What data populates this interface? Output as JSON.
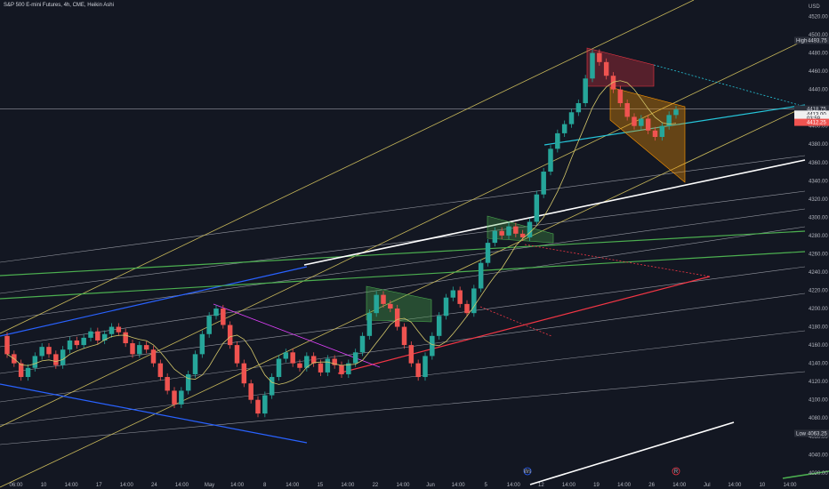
{
  "header": {
    "symbol_line": "S&P 500 E-mini Futures, 4h, CME, Heikin Ashi",
    "currency": "USD"
  },
  "chart_data": {
    "type": "candlestick",
    "price_axis": {
      "ticks": [
        4020,
        4040,
        4060,
        4080,
        4100,
        4120,
        4140,
        4160,
        4180,
        4200,
        4220,
        4240,
        4260,
        4280,
        4300,
        4320,
        4340,
        4360,
        4380,
        4400,
        4420,
        4440,
        4460,
        4480,
        4500,
        4520
      ],
      "tick_labels": [
        "4020.00",
        "4040.00",
        "4060.00",
        "4080.00",
        "4100.00",
        "4120.00",
        "4140.00",
        "4160.00",
        "4180.00",
        "4200.00",
        "4220.00",
        "4240.00",
        "4260.00",
        "4280.00",
        "4300.00",
        "4320.00",
        "4340.00",
        "4360.00",
        "4380.00",
        "4400.00",
        "4420.00",
        "4440.00",
        "4460.00",
        "4480.00",
        "4500.00",
        "4520.00"
      ],
      "range": [
        4014,
        4538
      ]
    },
    "time_axis": {
      "labels": [
        "06:00",
        "10",
        "14:00",
        "17",
        "14:00",
        "24",
        "14:00",
        "May",
        "14:00",
        "8",
        "14:00",
        "15",
        "14:00",
        "22",
        "14:00",
        "Jun",
        "14:00",
        "5",
        "14:00",
        "12",
        "14:00",
        "19",
        "14:00",
        "26",
        "14:00",
        "Jul",
        "14:00",
        "10",
        "14:00"
      ]
    },
    "markers": {
      "high_label": "High",
      "high_value": "4493.75",
      "low_label": "Low",
      "low_value": "4063.25",
      "last_price": "4418.75",
      "last_price_2": "4413.00",
      "countdown": "03:59",
      "other_price": "4412.25"
    },
    "annotations": [
      "Ws",
      "R"
    ],
    "ohlc_approx": [
      {
        "o": 4170,
        "c": 4150
      },
      {
        "o": 4150,
        "c": 4140
      },
      {
        "o": 4140,
        "c": 4125
      },
      {
        "o": 4125,
        "c": 4135
      },
      {
        "o": 4135,
        "c": 4148
      },
      {
        "o": 4148,
        "c": 4158
      },
      {
        "o": 4158,
        "c": 4150
      },
      {
        "o": 4150,
        "c": 4138
      },
      {
        "o": 4138,
        "c": 4155
      },
      {
        "o": 4155,
        "c": 4165
      },
      {
        "o": 4165,
        "c": 4160
      },
      {
        "o": 4160,
        "c": 4168
      },
      {
        "o": 4168,
        "c": 4175
      },
      {
        "o": 4175,
        "c": 4165
      },
      {
        "o": 4165,
        "c": 4172
      },
      {
        "o": 4172,
        "c": 4180
      },
      {
        "o": 4180,
        "c": 4174
      },
      {
        "o": 4174,
        "c": 4162
      },
      {
        "o": 4162,
        "c": 4150
      },
      {
        "o": 4150,
        "c": 4160
      },
      {
        "o": 4160,
        "c": 4155
      },
      {
        "o": 4155,
        "c": 4140
      },
      {
        "o": 4140,
        "c": 4125
      },
      {
        "o": 4125,
        "c": 4110
      },
      {
        "o": 4110,
        "c": 4095
      },
      {
        "o": 4095,
        "c": 4110
      },
      {
        "o": 4110,
        "c": 4128
      },
      {
        "o": 4128,
        "c": 4150
      },
      {
        "o": 4150,
        "c": 4172
      },
      {
        "o": 4172,
        "c": 4192
      },
      {
        "o": 4192,
        "c": 4200
      },
      {
        "o": 4200,
        "c": 4182
      },
      {
        "o": 4182,
        "c": 4160
      },
      {
        "o": 4160,
        "c": 4140
      },
      {
        "o": 4140,
        "c": 4118
      },
      {
        "o": 4118,
        "c": 4100
      },
      {
        "o": 4100,
        "c": 4085
      },
      {
        "o": 4085,
        "c": 4105
      },
      {
        "o": 4105,
        "c": 4125
      },
      {
        "o": 4125,
        "c": 4145
      },
      {
        "o": 4145,
        "c": 4152
      },
      {
        "o": 4152,
        "c": 4140
      },
      {
        "o": 4140,
        "c": 4135
      },
      {
        "o": 4135,
        "c": 4148
      },
      {
        "o": 4148,
        "c": 4140
      },
      {
        "o": 4140,
        "c": 4130
      },
      {
        "o": 4130,
        "c": 4145
      },
      {
        "o": 4145,
        "c": 4138
      },
      {
        "o": 4138,
        "c": 4128
      },
      {
        "o": 4128,
        "c": 4140
      },
      {
        "o": 4140,
        "c": 4152
      },
      {
        "o": 4152,
        "c": 4170
      },
      {
        "o": 4170,
        "c": 4195
      },
      {
        "o": 4195,
        "c": 4215
      },
      {
        "o": 4215,
        "c": 4205
      },
      {
        "o": 4205,
        "c": 4200
      },
      {
        "o": 4200,
        "c": 4180
      },
      {
        "o": 4180,
        "c": 4160
      },
      {
        "o": 4160,
        "c": 4140
      },
      {
        "o": 4140,
        "c": 4125
      },
      {
        "o": 4125,
        "c": 4148
      },
      {
        "o": 4148,
        "c": 4170
      },
      {
        "o": 4170,
        "c": 4192
      },
      {
        "o": 4192,
        "c": 4212
      },
      {
        "o": 4212,
        "c": 4220
      },
      {
        "o": 4220,
        "c": 4205
      },
      {
        "o": 4205,
        "c": 4195
      },
      {
        "o": 4195,
        "c": 4222
      },
      {
        "o": 4222,
        "c": 4250
      },
      {
        "o": 4250,
        "c": 4272
      },
      {
        "o": 4272,
        "c": 4285
      },
      {
        "o": 4285,
        "c": 4280
      },
      {
        "o": 4280,
        "c": 4290
      },
      {
        "o": 4290,
        "c": 4282
      },
      {
        "o": 4282,
        "c": 4278
      },
      {
        "o": 4278,
        "c": 4295
      },
      {
        "o": 4295,
        "c": 4325
      },
      {
        "o": 4325,
        "c": 4350
      },
      {
        "o": 4350,
        "c": 4375
      },
      {
        "o": 4375,
        "c": 4392
      },
      {
        "o": 4392,
        "c": 4402
      },
      {
        "o": 4402,
        "c": 4415
      },
      {
        "o": 4415,
        "c": 4425
      },
      {
        "o": 4425,
        "c": 4452
      },
      {
        "o": 4452,
        "c": 4480
      },
      {
        "o": 4480,
        "c": 4470
      },
      {
        "o": 4470,
        "c": 4455
      },
      {
        "o": 4455,
        "c": 4440
      },
      {
        "o": 4440,
        "c": 4425
      },
      {
        "o": 4425,
        "c": 4410
      },
      {
        "o": 4410,
        "c": 4400
      },
      {
        "o": 4400,
        "c": 4408
      },
      {
        "o": 4408,
        "c": 4395
      },
      {
        "o": 4395,
        "c": 4388
      },
      {
        "o": 4388,
        "c": 4400
      },
      {
        "o": 4400,
        "c": 4412
      },
      {
        "o": 4412,
        "c": 4418
      }
    ]
  },
  "colors": {
    "up": "#26a69a",
    "down": "#ef5350",
    "bg": "#131722",
    "grid": "#2a2e39",
    "text": "#b2b5be"
  }
}
